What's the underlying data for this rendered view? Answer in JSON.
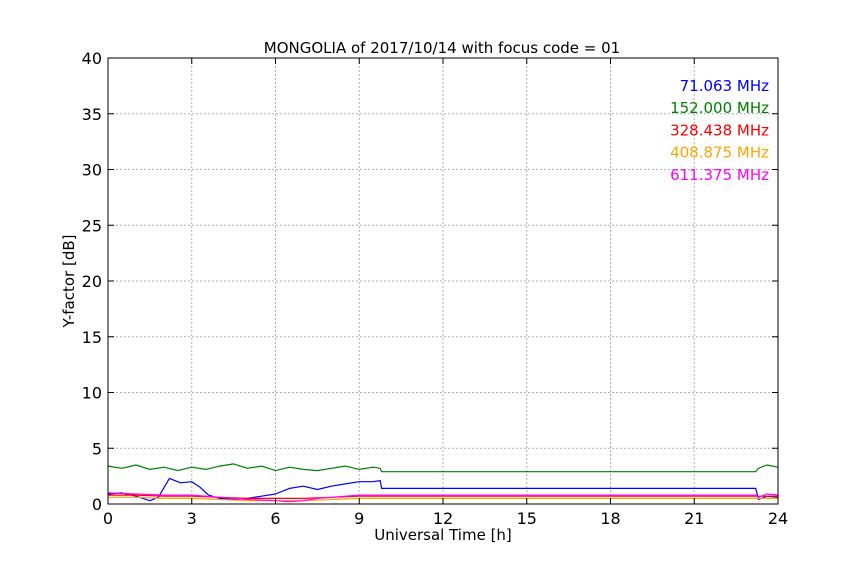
{
  "chart_data": {
    "type": "line",
    "title": "MONGOLIA of 2017/10/14 with focus code = 01",
    "xlabel": "Universal Time [h]",
    "ylabel": "Y-factor [dB]",
    "xlim": [
      0,
      24
    ],
    "ylim": [
      0,
      40
    ],
    "xticks": [
      0,
      3,
      6,
      9,
      12,
      15,
      18,
      21,
      24
    ],
    "yticks": [
      0,
      5,
      10,
      15,
      20,
      25,
      30,
      35,
      40
    ],
    "grid": true,
    "legend_placement": "top-right",
    "series": [
      {
        "name": "71.063 MHz",
        "color": "#0000ff",
        "points": [
          [
            0,
            0.9
          ],
          [
            0.5,
            1.0
          ],
          [
            1.0,
            0.7
          ],
          [
            1.5,
            0.3
          ],
          [
            1.8,
            0.6
          ],
          [
            2.2,
            2.3
          ],
          [
            2.6,
            1.9
          ],
          [
            3.0,
            2.0
          ],
          [
            3.3,
            1.5
          ],
          [
            3.6,
            0.8
          ],
          [
            4.0,
            0.5
          ],
          [
            4.5,
            0.4
          ],
          [
            5.0,
            0.5
          ],
          [
            5.5,
            0.7
          ],
          [
            6.0,
            0.9
          ],
          [
            6.5,
            1.4
          ],
          [
            7.0,
            1.6
          ],
          [
            7.5,
            1.3
          ],
          [
            8.0,
            1.6
          ],
          [
            8.5,
            1.8
          ],
          [
            9.0,
            2.0
          ],
          [
            9.5,
            2.0
          ],
          [
            9.75,
            2.1
          ],
          [
            9.8,
            1.4
          ],
          [
            23.2,
            1.4
          ],
          [
            23.3,
            0.4
          ],
          [
            23.6,
            0.7
          ],
          [
            24,
            0.6
          ]
        ]
      },
      {
        "name": "152.000 MHz",
        "color": "#008000",
        "points": [
          [
            0,
            3.4
          ],
          [
            0.5,
            3.2
          ],
          [
            1.0,
            3.5
          ],
          [
            1.5,
            3.1
          ],
          [
            2.0,
            3.3
          ],
          [
            2.5,
            3.0
          ],
          [
            3.0,
            3.3
          ],
          [
            3.5,
            3.1
          ],
          [
            4.0,
            3.4
          ],
          [
            4.5,
            3.6
          ],
          [
            5.0,
            3.2
          ],
          [
            5.5,
            3.4
          ],
          [
            6.0,
            3.0
          ],
          [
            6.5,
            3.3
          ],
          [
            7.0,
            3.1
          ],
          [
            7.5,
            3.0
          ],
          [
            8.0,
            3.2
          ],
          [
            8.5,
            3.4
          ],
          [
            9.0,
            3.1
          ],
          [
            9.5,
            3.3
          ],
          [
            9.75,
            3.2
          ],
          [
            9.8,
            2.9
          ],
          [
            23.2,
            2.9
          ],
          [
            23.3,
            3.2
          ],
          [
            23.6,
            3.5
          ],
          [
            24,
            3.3
          ]
        ]
      },
      {
        "name": "328.438 MHz",
        "color": "#ff0000",
        "points": [
          [
            0,
            0.8
          ],
          [
            1.0,
            0.8
          ],
          [
            2.0,
            0.7
          ],
          [
            3.0,
            0.7
          ],
          [
            4.0,
            0.6
          ],
          [
            5.0,
            0.5
          ],
          [
            6.0,
            0.5
          ],
          [
            7.0,
            0.5
          ],
          [
            8.0,
            0.6
          ],
          [
            9.0,
            0.7
          ],
          [
            9.75,
            0.7
          ],
          [
            9.8,
            0.7
          ],
          [
            23.2,
            0.7
          ],
          [
            24,
            0.7
          ]
        ]
      },
      {
        "name": "408.875 MHz",
        "color": "#ffa500",
        "points": [
          [
            0,
            0.6
          ],
          [
            1.0,
            0.6
          ],
          [
            2.0,
            0.5
          ],
          [
            3.0,
            0.5
          ],
          [
            4.0,
            0.4
          ],
          [
            5.0,
            0.3
          ],
          [
            6.0,
            0.3
          ],
          [
            7.0,
            0.3
          ],
          [
            8.0,
            0.4
          ],
          [
            9.0,
            0.5
          ],
          [
            9.75,
            0.5
          ],
          [
            9.8,
            0.5
          ],
          [
            23.2,
            0.5
          ],
          [
            24,
            0.5
          ]
        ]
      },
      {
        "name": "611.375 MHz",
        "color": "#ff00ff",
        "points": [
          [
            0,
            1.0
          ],
          [
            1.0,
            0.9
          ],
          [
            2.0,
            0.8
          ],
          [
            3.0,
            0.8
          ],
          [
            4.0,
            0.6
          ],
          [
            5.0,
            0.4
          ],
          [
            6.0,
            0.3
          ],
          [
            6.5,
            0.2
          ],
          [
            7.0,
            0.3
          ],
          [
            7.5,
            0.5
          ],
          [
            8.0,
            0.6
          ],
          [
            8.5,
            0.7
          ],
          [
            9.0,
            0.8
          ],
          [
            9.75,
            0.8
          ],
          [
            9.8,
            0.8
          ],
          [
            23.2,
            0.8
          ],
          [
            23.3,
            0.6
          ],
          [
            23.6,
            0.9
          ],
          [
            24,
            0.8
          ]
        ]
      }
    ]
  }
}
